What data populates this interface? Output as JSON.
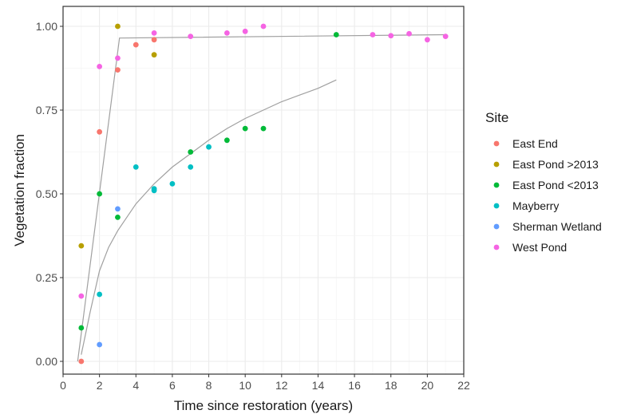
{
  "chart_data": {
    "type": "scatter",
    "xlabel": "Time since restoration (years)",
    "ylabel": "Vegetation fraction",
    "xlim": [
      0,
      22
    ],
    "ylim": [
      0,
      1
    ],
    "xticks": [
      0,
      2,
      4,
      6,
      8,
      10,
      12,
      14,
      16,
      18,
      20,
      22
    ],
    "xtick_labels": [
      "0",
      "2",
      "4",
      "6",
      "8",
      "10",
      "12",
      "14",
      "16",
      "18",
      "20",
      "22"
    ],
    "yticks": [
      0,
      0.25,
      0.5,
      0.75,
      1
    ],
    "ytick_labels": [
      "0.00",
      "0.25",
      "0.50",
      "0.75",
      "1.00"
    ],
    "grid": true,
    "legend": {
      "title": "Site",
      "placement": "right"
    },
    "series": [
      {
        "name": "East End",
        "color": "#F8766D",
        "points": [
          [
            1,
            0.0
          ],
          [
            2,
            0.685
          ],
          [
            3,
            0.87
          ],
          [
            4,
            0.945
          ],
          [
            5,
            0.96
          ]
        ]
      },
      {
        "name": "East Pond >2013",
        "color": "#B79F00",
        "points": [
          [
            1,
            0.345
          ],
          [
            3,
            1.0
          ],
          [
            5,
            0.915
          ]
        ]
      },
      {
        "name": "East Pond <2013",
        "color": "#00BA38",
        "points": [
          [
            1,
            0.1
          ],
          [
            2,
            0.5
          ],
          [
            3,
            0.43
          ],
          [
            7,
            0.625
          ],
          [
            9,
            0.66
          ],
          [
            10,
            0.695
          ],
          [
            11,
            0.695
          ],
          [
            15,
            0.975
          ]
        ]
      },
      {
        "name": "Mayberry",
        "color": "#00BFC4",
        "points": [
          [
            2,
            0.2
          ],
          [
            4,
            0.58
          ],
          [
            5,
            0.515
          ],
          [
            5,
            0.51
          ],
          [
            6,
            0.53
          ],
          [
            7,
            0.58
          ],
          [
            8,
            0.64
          ]
        ]
      },
      {
        "name": "Sherman Wetland",
        "color": "#619CFF",
        "points": [
          [
            2,
            0.05
          ],
          [
            3,
            0.455
          ]
        ]
      },
      {
        "name": "West Pond",
        "color": "#F564E3",
        "points": [
          [
            1,
            0.195
          ],
          [
            2,
            0.88
          ],
          [
            3,
            0.905
          ],
          [
            5,
            0.98
          ],
          [
            7,
            0.97
          ],
          [
            9,
            0.98
          ],
          [
            10,
            0.985
          ],
          [
            11,
            1.0
          ],
          [
            17,
            0.975
          ],
          [
            18,
            0.972
          ],
          [
            19,
            0.978
          ],
          [
            20,
            0.96
          ],
          [
            21,
            0.97
          ]
        ]
      }
    ],
    "fit_lines": [
      {
        "color": "#A0A0A0",
        "points": [
          [
            0.8,
            0.0
          ],
          [
            3.1,
            0.965
          ],
          [
            21,
            0.975
          ]
        ]
      },
      {
        "color": "#A0A0A0",
        "points": [
          [
            1,
            0.02
          ],
          [
            1.5,
            0.15
          ],
          [
            2,
            0.27
          ],
          [
            2.5,
            0.34
          ],
          [
            3,
            0.39
          ],
          [
            4,
            0.47
          ],
          [
            5,
            0.53
          ],
          [
            6,
            0.58
          ],
          [
            7,
            0.62
          ],
          [
            8,
            0.66
          ],
          [
            9,
            0.695
          ],
          [
            10,
            0.725
          ],
          [
            11,
            0.75
          ],
          [
            12,
            0.775
          ],
          [
            13,
            0.795
          ],
          [
            14,
            0.815
          ],
          [
            15,
            0.84
          ]
        ]
      }
    ]
  }
}
